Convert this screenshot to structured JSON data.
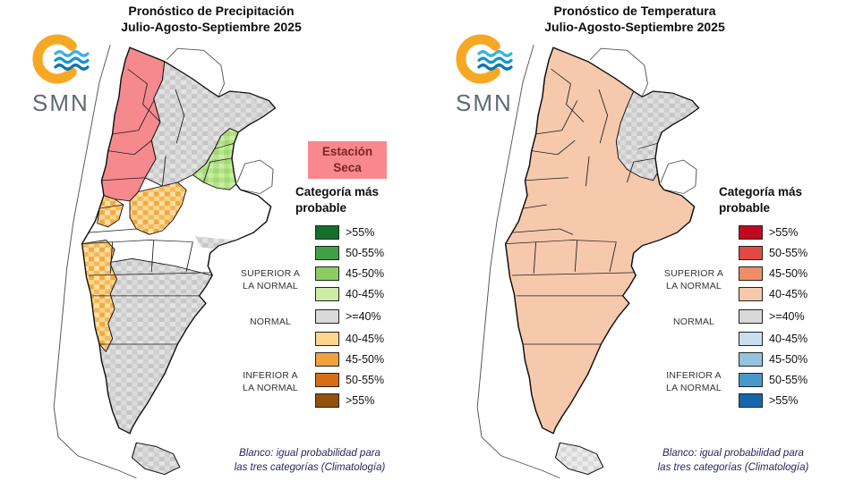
{
  "panels": [
    {
      "title": "Pronóstico de Precipitación",
      "subtitle": "Julio-Agosto-Septiembre 2025",
      "logo_text": "SMN",
      "badge": {
        "line1": "Estación",
        "line2": "Seca",
        "bg": "#f8888e"
      },
      "legend": {
        "title_line1": "Categoría más",
        "title_line2": "probable",
        "groups": {
          "superior": {
            "line1": "SUPERIOR A",
            "line2": "LA NORMAL"
          },
          "normal": {
            "line1": "NORMAL",
            "line2": ""
          },
          "inferior": {
            "line1": "INFERIOR A",
            "line2": "LA NORMAL"
          }
        },
        "entries": [
          {
            "group": "superior",
            "label": ">55%",
            "color": "#156f2b"
          },
          {
            "group": "superior",
            "label": "50-55%",
            "color": "#3fa047"
          },
          {
            "group": "superior",
            "label": "45-50%",
            "color": "#8ccd63"
          },
          {
            "group": "superior",
            "label": "40-45%",
            "color": "#cdeca4"
          },
          {
            "group": "normal",
            "label": ">=40%",
            "color": "#d9d9d9"
          },
          {
            "group": "inferior",
            "label": "40-45%",
            "color": "#fbd68c"
          },
          {
            "group": "inferior",
            "label": "45-50%",
            "color": "#f1a23d"
          },
          {
            "group": "inferior",
            "label": "50-55%",
            "color": "#d96d14"
          },
          {
            "group": "inferior",
            "label": ">55%",
            "color": "#93510e"
          }
        ]
      },
      "footnote": {
        "line1": "Blanco: igual probabilidad para",
        "line2": "las tres categorías (Climatología)"
      }
    },
    {
      "title": "Pronóstico de Temperatura",
      "subtitle": "Julio-Agosto-Septiembre 2025",
      "logo_text": "SMN",
      "badge": null,
      "legend": {
        "title_line1": "Categoría más",
        "title_line2": "probable",
        "groups": {
          "superior": {
            "line1": "SUPERIOR A",
            "line2": "LA NORMAL"
          },
          "normal": {
            "line1": "NORMAL",
            "line2": ""
          },
          "inferior": {
            "line1": "INFERIOR A",
            "line2": "LA NORMAL"
          }
        },
        "entries": [
          {
            "group": "superior",
            "label": ">55%",
            "color": "#bf0a1e"
          },
          {
            "group": "superior",
            "label": "50-55%",
            "color": "#e04a42"
          },
          {
            "group": "superior",
            "label": "45-50%",
            "color": "#ef8e66"
          },
          {
            "group": "superior",
            "label": "40-45%",
            "color": "#f6c9ac"
          },
          {
            "group": "normal",
            "label": ">=40%",
            "color": "#d9d9d9"
          },
          {
            "group": "inferior",
            "label": "40-45%",
            "color": "#c9dff0"
          },
          {
            "group": "inferior",
            "label": "45-50%",
            "color": "#94c4df"
          },
          {
            "group": "inferior",
            "label": "50-55%",
            "color": "#4a97c9"
          },
          {
            "group": "inferior",
            "label": ">55%",
            "color": "#1668ac"
          }
        ]
      },
      "footnote": {
        "line1": "Blanco: igual probabilidad para",
        "line2": "las tres categorías (Climatología)"
      }
    }
  ],
  "map_palette": {
    "precip_estacion_seca": "#f5898e",
    "temp_superior": "#f6c9ac",
    "outline": "#111111"
  }
}
